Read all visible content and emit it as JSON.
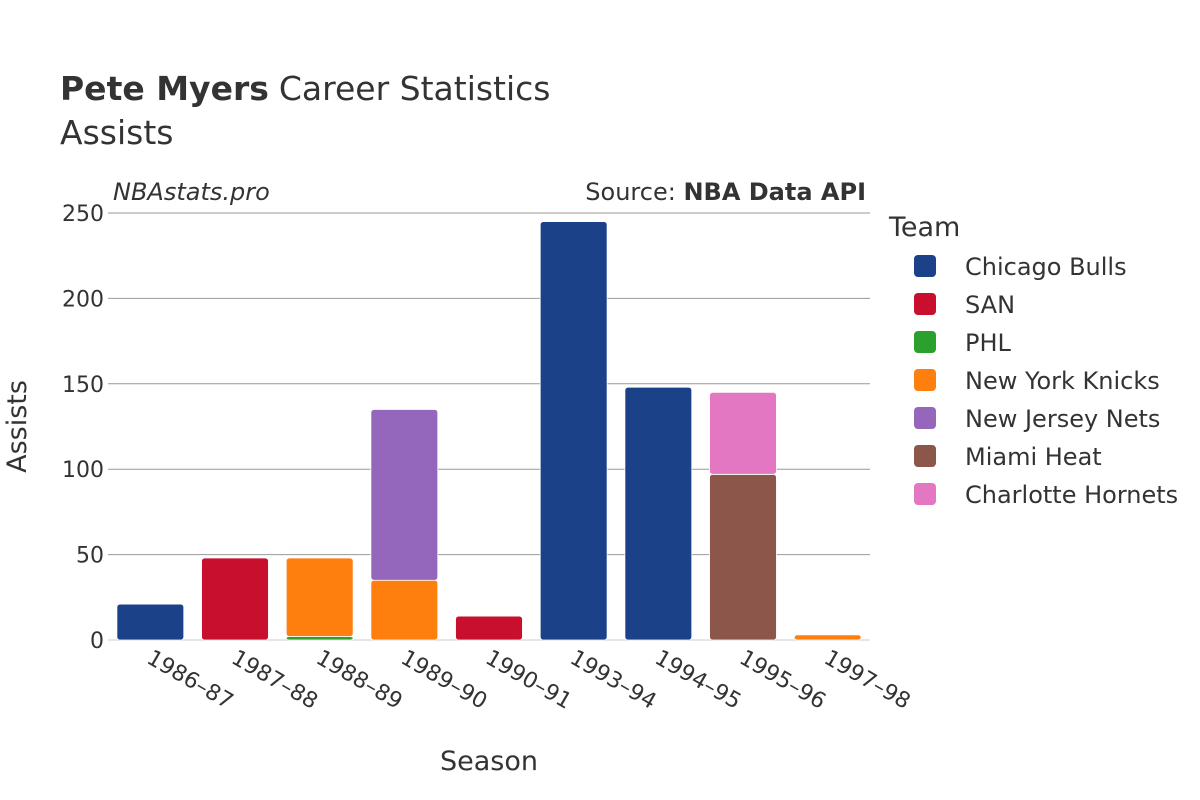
{
  "title": {
    "player": "Pete Myers",
    "rest": "Career Statistics",
    "subtitle": "Assists"
  },
  "watermark": "NBAstats.pro",
  "source": {
    "prefix": "Source: ",
    "name": "NBA Data API"
  },
  "legend_title": "Team",
  "chart_data": {
    "type": "bar",
    "stacked": true,
    "xlabel": "Season",
    "ylabel": "Assists",
    "ylim": [
      0,
      250
    ],
    "yticks": [
      0,
      50,
      100,
      150,
      200,
      250
    ],
    "grid": true,
    "legend_position": "right",
    "categories": [
      "1986–87",
      "1987–88",
      "1988–89",
      "1989–90",
      "1990–91",
      "1993–94",
      "1994–95",
      "1995–96",
      "1997–98"
    ],
    "series": [
      {
        "name": "Chicago Bulls",
        "color": "#1b4289",
        "values": [
          21,
          0,
          0,
          0,
          0,
          245,
          148,
          0,
          0
        ]
      },
      {
        "name": "SAN",
        "color": "#c8102e",
        "values": [
          0,
          48,
          0,
          0,
          14,
          0,
          0,
          0,
          0
        ]
      },
      {
        "name": "PHL",
        "color": "#2ca02c",
        "values": [
          0,
          0,
          2,
          0,
          0,
          0,
          0,
          0,
          0
        ]
      },
      {
        "name": "New York Knicks",
        "color": "#ff7f0e",
        "values": [
          0,
          0,
          46,
          35,
          0,
          0,
          0,
          0,
          3
        ]
      },
      {
        "name": "New Jersey Nets",
        "color": "#9467bd",
        "values": [
          0,
          0,
          0,
          100,
          0,
          0,
          0,
          0,
          0
        ]
      },
      {
        "name": "Miami Heat",
        "color": "#8c564b",
        "values": [
          0,
          0,
          0,
          0,
          0,
          0,
          0,
          97,
          0
        ]
      },
      {
        "name": "Charlotte Hornets",
        "color": "#e377c2",
        "values": [
          0,
          0,
          0,
          0,
          0,
          0,
          0,
          48,
          0
        ]
      }
    ]
  }
}
